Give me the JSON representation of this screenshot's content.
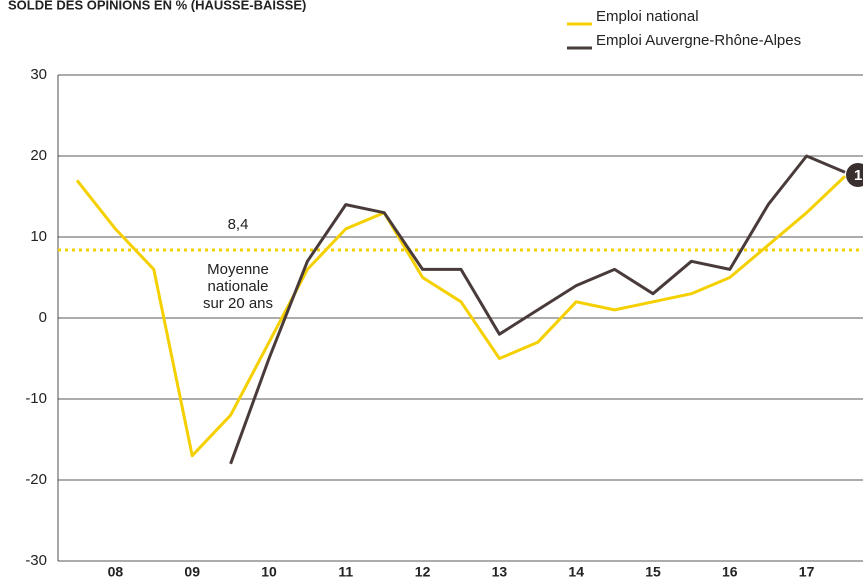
{
  "chart_data": {
    "type": "line",
    "title": "SOLDE DES OPINIONS EN % (HAUSSE-BAISSE)",
    "categories": [
      null,
      "08",
      null,
      "09",
      null,
      "10",
      null,
      "11",
      null,
      "12",
      null,
      "13",
      null,
      "14",
      null,
      "15",
      null,
      "16",
      null,
      "17",
      null
    ],
    "series": [
      {
        "name": "Emploi national",
        "color": "#f5d000",
        "values": [
          17,
          11,
          6,
          -17,
          -12,
          -3,
          6,
          11,
          13,
          5,
          2,
          -5,
          -3,
          2,
          1,
          2,
          3,
          5,
          9,
          13,
          17.5
        ]
      },
      {
        "name": "Emploi Auvergne-Rhône-Alpes",
        "color": "#4a3b3b",
        "values": [
          null,
          null,
          null,
          null,
          -18,
          -5,
          7,
          14,
          13,
          6,
          6,
          -2,
          1,
          4,
          6,
          3,
          7,
          6,
          14,
          20,
          18
        ]
      }
    ],
    "ylim": [
      -30,
      30
    ],
    "yticks": [
      -30,
      -20,
      -10,
      0,
      10,
      20,
      30
    ],
    "grid": true,
    "reference": {
      "value": 8.4,
      "label": "8,4",
      "lines": [
        "Moyenne",
        "nationale",
        "sur 20 ans"
      ],
      "color": "#f5d000"
    },
    "badge": "1"
  }
}
